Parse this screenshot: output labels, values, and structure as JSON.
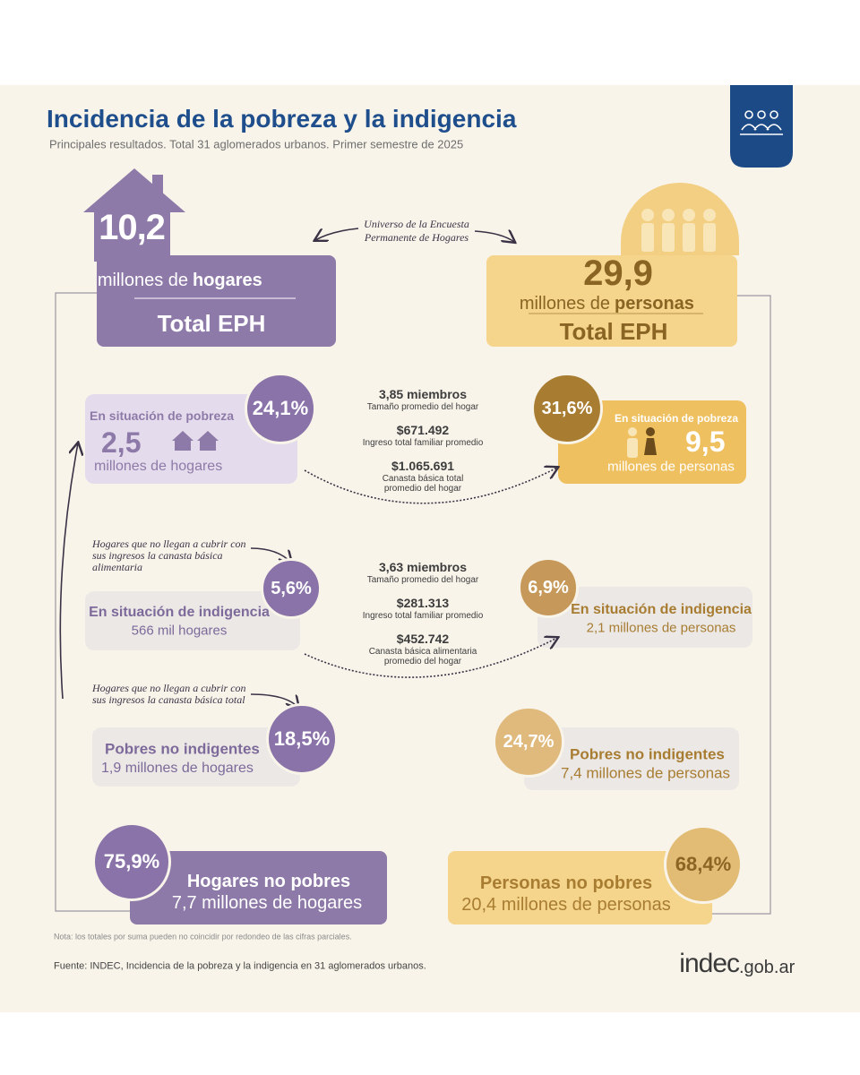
{
  "header": {
    "title": "Incidencia de la pobreza y la indigencia",
    "subtitle": "Principales resultados. Total 31 aglomerados urbanos. Primer semestre de 2025"
  },
  "universe_note": [
    "Universo de la Encuesta",
    "Permanente de Hogares"
  ],
  "households": {
    "total": {
      "value": "10,2",
      "unit": "millones de",
      "unit_bold": "hogares",
      "label": "Total EPH"
    },
    "poverty": {
      "label": "En situación de pobreza",
      "pct": "24,1%",
      "value": "2,5",
      "unit": "millones de hogares"
    },
    "indigence": {
      "label": "En situación de indigencia",
      "pct": "5,6%",
      "detail": "566 mil hogares"
    },
    "non_indigent_poor": {
      "label": "Pobres no indigentes",
      "pct": "18,5%",
      "detail": "1,9 millones de hogares"
    },
    "non_poor": {
      "label": "Hogares no pobres",
      "pct": "75,9%",
      "detail": "7,7 millones de hogares"
    }
  },
  "people": {
    "total": {
      "value": "29,9",
      "unit": "millones de",
      "unit_bold": "personas",
      "label": "Total EPH"
    },
    "poverty": {
      "label": "En situación de pobreza",
      "pct": "31,6%",
      "value": "9,5",
      "unit": "millones de personas"
    },
    "indigence": {
      "label": "En situación de indigencia",
      "pct": "6,9%",
      "detail": "2,1 millones de personas"
    },
    "non_indigent_poor": {
      "label": "Pobres no indigentes",
      "pct": "24,7%",
      "detail": "7,4 millones de personas"
    },
    "non_poor": {
      "label": "Personas no pobres",
      "pct": "68,4%",
      "detail": "20,4 millones de personas"
    }
  },
  "poverty_stats": [
    {
      "value": "3,85 miembros",
      "label": [
        "Tamaño promedio del hogar"
      ]
    },
    {
      "value": "$671.492",
      "label": [
        "Ingreso total familiar promedio"
      ]
    },
    {
      "value": "$1.065.691",
      "label": [
        "Canasta básica total",
        "promedio del hogar"
      ]
    }
  ],
  "indigence_stats": [
    {
      "value": "3,63 miembros",
      "label": [
        "Tamaño promedio del hogar"
      ]
    },
    {
      "value": "$281.313",
      "label": [
        "Ingreso total familiar promedio"
      ]
    },
    {
      "value": "$452.742",
      "label": [
        "Canasta básica alimentaria",
        "promedio del hogar"
      ]
    }
  ],
  "notes": [
    [
      "Hogares que no llegan a cubrir con",
      "sus ingresos la canasta básica",
      "alimentaria"
    ],
    [
      "Hogares que no llegan a cubrir con",
      "sus ingresos la canasta básica total"
    ]
  ],
  "footer": {
    "note": "Nota: los totales por suma pueden no coincidir por redondeo de las cifras parciales.",
    "source": "Fuente: INDEC, Incidencia de la pobreza y la indigencia en 31 aglomerados urbanos.",
    "logo": "indec",
    "logo_suffix": ".gob.ar"
  }
}
